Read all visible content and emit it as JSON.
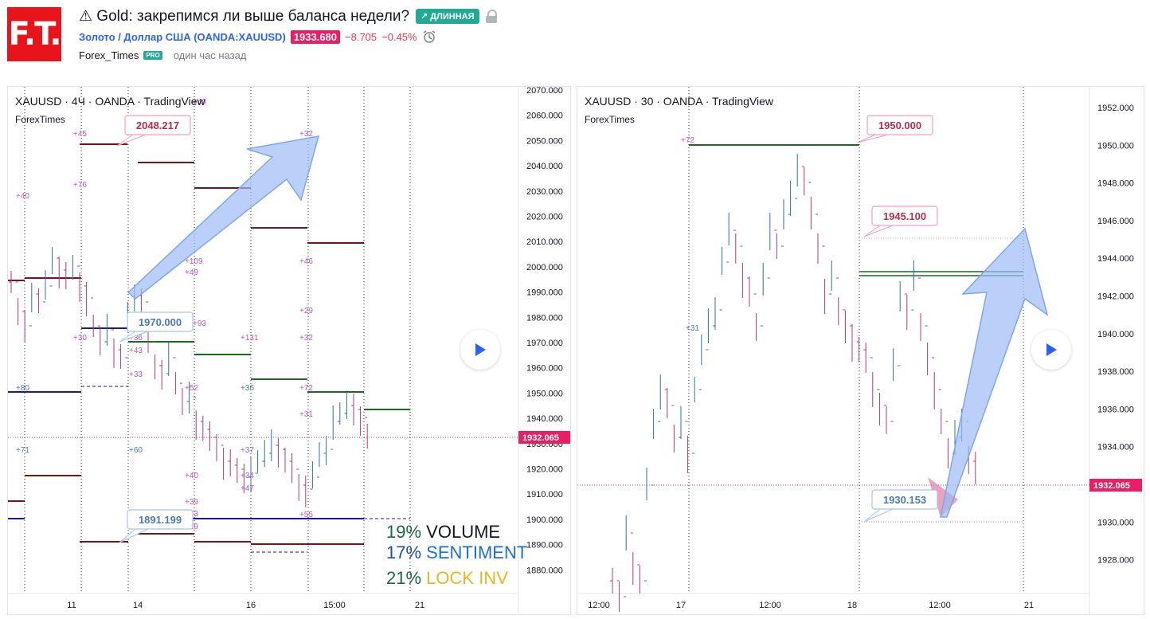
{
  "header": {
    "logo_text": "F.T.",
    "title": "⚠ Gold: закрепимся ли выше баланса недели?",
    "badge": "↗ ДЛИННАЯ",
    "symbol": "Золото / Доллар США (OANDA:XAUUSD)",
    "price": "1933.680",
    "change": "−8.705",
    "change_pct": "−0.45%",
    "author": "Forex_Times",
    "author_badge": "PRO",
    "time": "один час назад"
  },
  "chart1": {
    "title": "XAUUSD · 4Ч · OANDA · TradingView",
    "subtitle": "ForexTimes",
    "price_axis": [
      "2070.000",
      "2060.000",
      "2050.000",
      "2040.000",
      "2030.000",
      "2020.000",
      "2010.000",
      "2000.000",
      "1990.000",
      "1980.000",
      "1970.000",
      "1960.000",
      "1950.000",
      "1940.000",
      "1930.000",
      "1920.000",
      "1910.000",
      "1900.000",
      "1890.000",
      "1880.000"
    ],
    "time_axis": [
      "11",
      "14",
      "16",
      "15:00",
      "21"
    ],
    "current_price": "1932.065",
    "callouts": [
      "2048.217",
      "1970.000",
      "1891.199"
    ],
    "volume_labels": [
      "+45",
      "+40",
      "+76",
      "+40",
      "+109",
      "+49",
      "+46",
      "+32",
      "+29",
      "+30",
      "+36",
      "+43",
      "+93",
      "+131",
      "+32",
      "+33",
      "+52",
      "+36",
      "+72",
      "+80",
      "+31",
      "+71",
      "+60",
      "+37",
      "+34",
      "+47",
      "+40",
      "+39",
      "+73",
      "+29",
      "+55"
    ]
  },
  "chart2": {
    "title": "XAUUSD · 30 · OANDA · TradingView",
    "subtitle": "ForexTimes",
    "price_axis": [
      "1952.000",
      "1950.000",
      "1948.000",
      "1946.000",
      "1944.000",
      "1942.000",
      "1940.000",
      "1938.000",
      "1936.000",
      "1934.000",
      "1932.000",
      "1930.000",
      "1928.000"
    ],
    "time_axis": [
      "12:00",
      "17",
      "12:00",
      "18",
      "12:00",
      "21"
    ],
    "current_price": "1932.065",
    "callouts": [
      "1950.000",
      "1945.100",
      "1930.153"
    ],
    "volume_labels": [
      "+72",
      "+31"
    ]
  },
  "legend": {
    "volume_pct": "19%",
    "volume_label": "VOLUME",
    "sentiment_pct": "17%",
    "sentiment_label": "SENTIMENT",
    "lock_pct": "21%",
    "lock_label": "LOCK INV"
  },
  "colors": {
    "up": "#2e6fab",
    "down": "#b0387a",
    "resistance": "#7a1515",
    "support": "#1a6b1e",
    "pivot": "#1a1a9a",
    "price_tag": "#e91e63",
    "arrow": "#9dbcf5"
  }
}
